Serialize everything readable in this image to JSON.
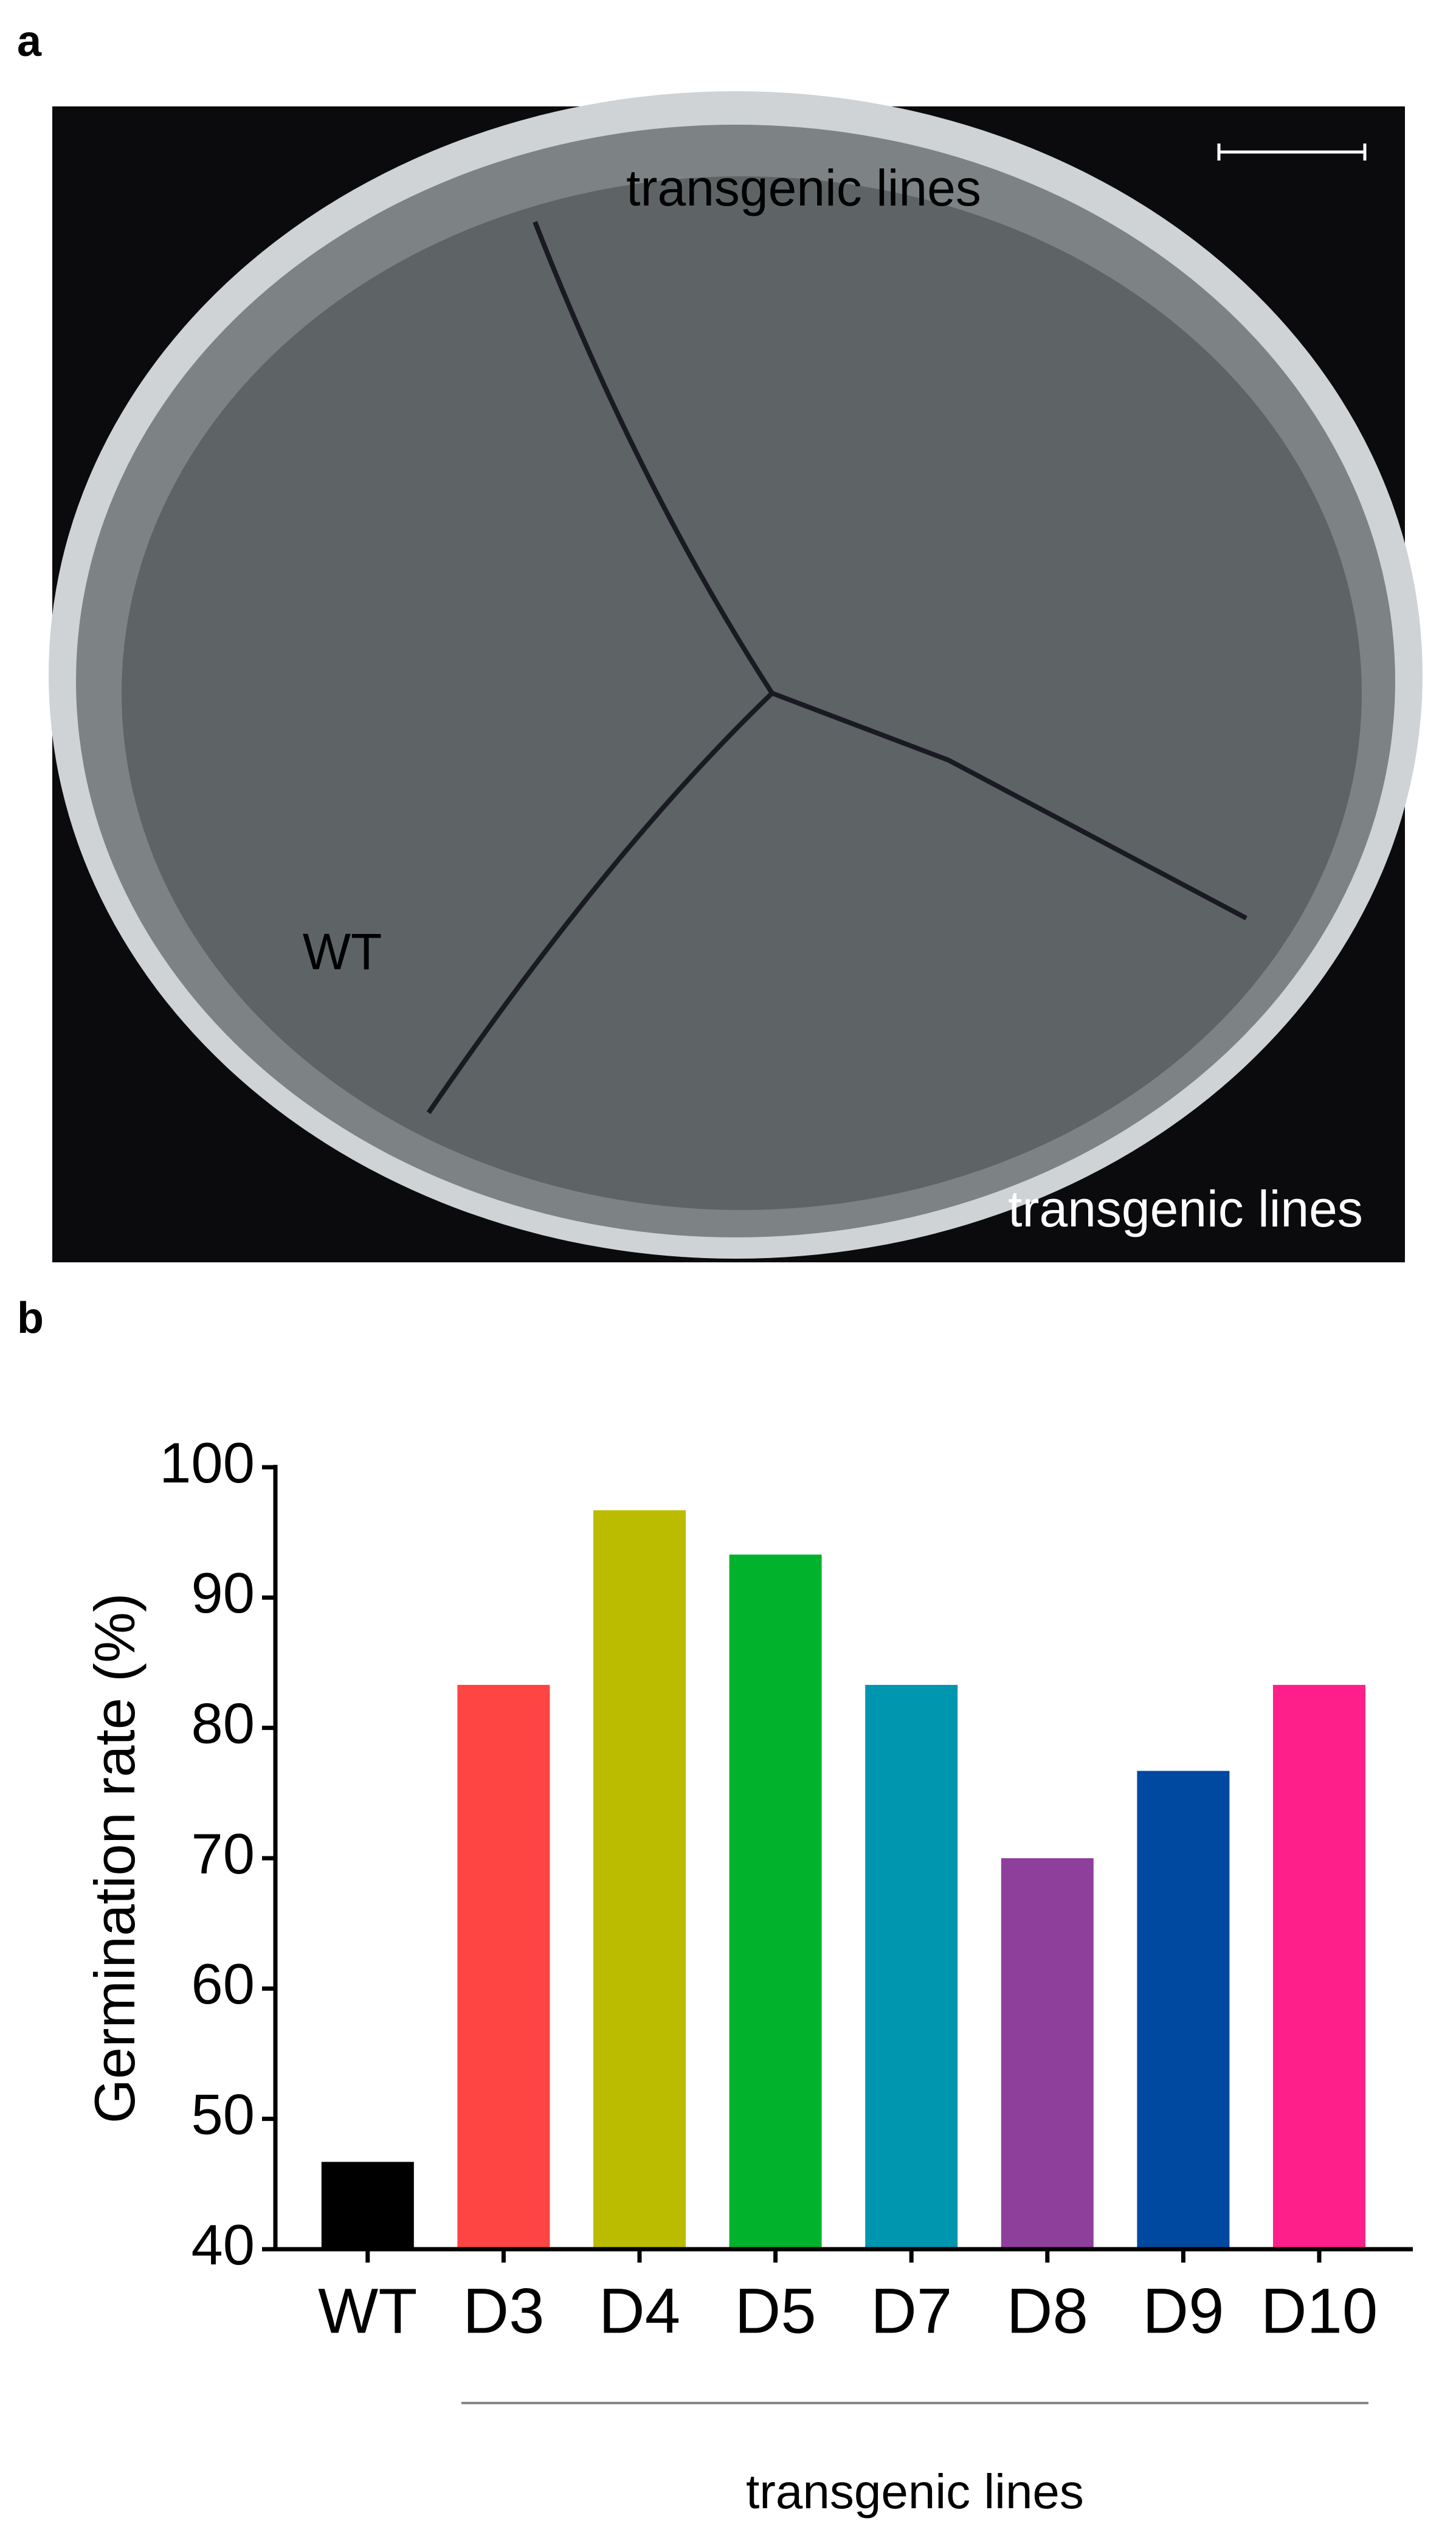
{
  "panels": {
    "a": "a",
    "b": "b"
  },
  "photo": {
    "labels": [
      "transgenic lines",
      "WT",
      "transgenic lines"
    ]
  },
  "chart_data": {
    "type": "bar",
    "y_label": "Germination rate (%)",
    "categories": [
      "WT",
      "D3",
      "D4",
      "D5",
      "D7",
      "D8",
      "D9",
      "D10"
    ],
    "values": [
      46.7,
      83.3,
      96.7,
      93.3,
      83.3,
      70,
      76.7,
      83.3
    ],
    "colors": [
      "#000000",
      "#ff4444",
      "#bbbb00",
      "#00b22c",
      "#0096b0",
      "#8e3f9c",
      "#0049a0",
      "#ff1f8a"
    ],
    "ylim": [
      40,
      100
    ],
    "yticks": [
      40,
      50,
      60,
      70,
      80,
      90,
      100
    ],
    "group_label": "transgenic lines"
  }
}
